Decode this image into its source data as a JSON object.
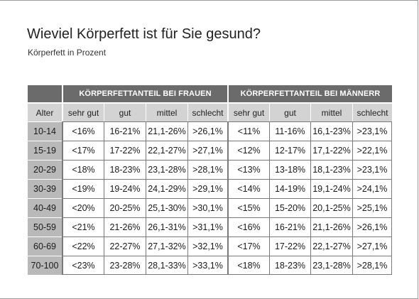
{
  "title": "Wieviel Körperfett ist für Sie gesund?",
  "subtitle": "Körperfett in Prozent",
  "table": {
    "group_women": "KÖRPERFETTANTEIL BEI FRAUEN",
    "group_men": "KÖRPERFETTANTEIL BEI MÄNNERR",
    "col_age": "Alter",
    "levels": [
      "sehr gut",
      "gut",
      "mittel",
      "schlecht"
    ],
    "rows": [
      {
        "age": "10-14",
        "women": [
          "<16%",
          "16-21%",
          "21,1-26%",
          ">26,1%"
        ],
        "men": [
          "<11%",
          "11-16%",
          "16,1-23%",
          ">23,1%"
        ]
      },
      {
        "age": "15-19",
        "women": [
          "<17%",
          "17-22%",
          "22,1-27%",
          ">27,1%"
        ],
        "men": [
          "<12%",
          "12-17%",
          "17,1-22%",
          ">22,1%"
        ]
      },
      {
        "age": "20-29",
        "women": [
          "<18%",
          "18-23%",
          "23,1-28%",
          ">28,1%"
        ],
        "men": [
          "<13%",
          "13-18%",
          "18,1-23%",
          ">23,1%"
        ]
      },
      {
        "age": "30-39",
        "women": [
          "<19%",
          "19-24%",
          "24,1-29%",
          ">29,1%"
        ],
        "men": [
          "<14%",
          "14-19%",
          "19,1-24%",
          ">24,1%"
        ]
      },
      {
        "age": "40-49",
        "women": [
          "<20%",
          "20-25%",
          "25,1-30%",
          ">30,1%"
        ],
        "men": [
          "<15%",
          "15-20%",
          "20,1-25%",
          ">25,1%"
        ]
      },
      {
        "age": "50-59",
        "women": [
          "<21%",
          "21-26%",
          "26,1-31%",
          ">31,1%"
        ],
        "men": [
          "<16%",
          "16-21%",
          "21,1-26%",
          ">26,1%"
        ]
      },
      {
        "age": "60-69",
        "women": [
          "<22%",
          "22-27%",
          "27,1-32%",
          ">32,1%"
        ],
        "men": [
          "<17%",
          "17-22%",
          "22,1-27%",
          ">27,1%"
        ]
      },
      {
        "age": "70-100",
        "women": [
          "<23%",
          "23-28%",
          "28,1-33%",
          ">33,1%"
        ],
        "men": [
          "<18%",
          "18-23%",
          "23,1-28%",
          ">28,1%"
        ]
      }
    ]
  }
}
